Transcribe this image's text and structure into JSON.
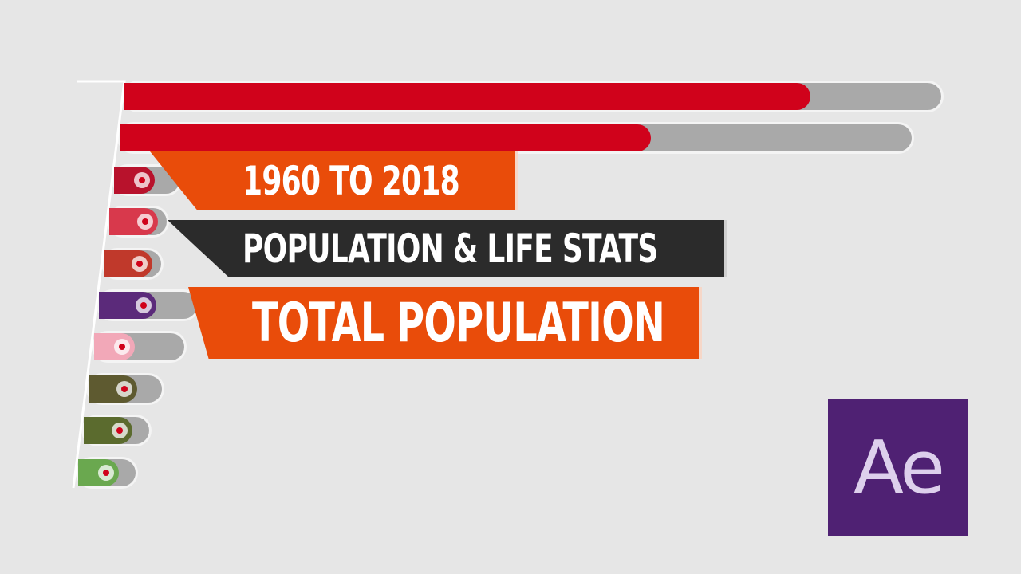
{
  "titles": {
    "years": "1960 TO 2018",
    "subtitle": "POPULATION & LIFE STATS",
    "metric": "TOTAL POPULATION"
  },
  "logo": {
    "text": "Ae",
    "color": "#4f2173"
  },
  "bars": [
    {
      "track": 1.0,
      "value": 0.84,
      "color": "#d0021b"
    },
    {
      "track": 0.97,
      "value": 0.65,
      "color": "#d0021b"
    },
    {
      "track": 0.08,
      "value": 0.05,
      "color": "#b8122c"
    },
    {
      "track": 0.07,
      "value": 0.06,
      "color": "#d8394c"
    },
    {
      "track": 0.07,
      "value": 0.06,
      "color": "#c0392b"
    },
    {
      "track": 0.12,
      "value": 0.07,
      "color": "#5b2a7a"
    },
    {
      "track": 0.11,
      "value": 0.05,
      "color": "#f2a8b8"
    },
    {
      "track": 0.09,
      "value": 0.06,
      "color": "#5e5a30"
    },
    {
      "track": 0.08,
      "value": 0.06,
      "color": "#5b6b2e"
    },
    {
      "track": 0.07,
      "value": 0.05,
      "color": "#6aa84f"
    }
  ]
}
